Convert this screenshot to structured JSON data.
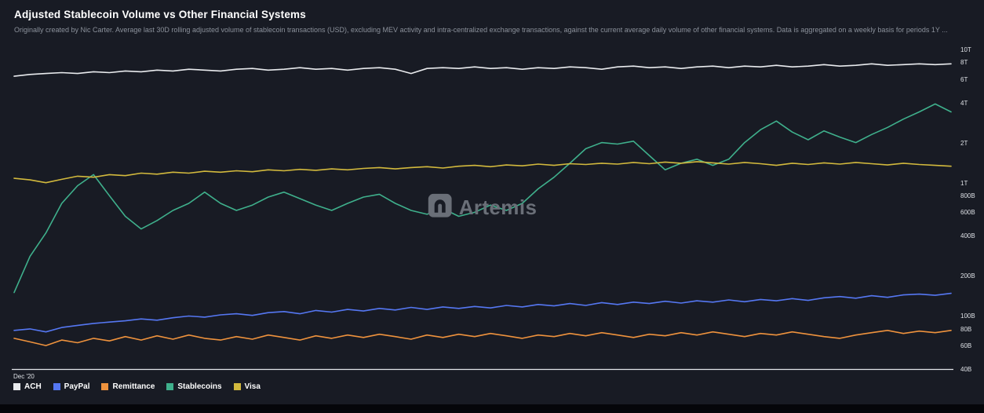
{
  "watermark": {
    "text": "Artemis"
  },
  "chart_data": {
    "type": "line",
    "title": "Adjusted Stablecoin Volume vs Other Financial Systems",
    "subtitle": "Originally created by Nic Carter. Average last 30D rolling adjusted volume of stablecoin transactions (USD), excluding MEV activity and intra-centralized exchange transactions, against the current average daily volume of other financial systems. Data is aggregated on a weekly basis for periods 1Y ...",
    "x_first_label": "Dec '20",
    "y_scale": "log",
    "y_unit": "billions USD",
    "ylim": [
      40,
      10000
    ],
    "grid": false,
    "legend_position": "bottom",
    "y_ticks": [
      {
        "label": "10T",
        "value": 10000
      },
      {
        "label": "8T",
        "value": 8000
      },
      {
        "label": "6T",
        "value": 6000
      },
      {
        "label": "4T",
        "value": 4000
      },
      {
        "label": "2T",
        "value": 2000
      },
      {
        "label": "1T",
        "value": 1000
      },
      {
        "label": "800B",
        "value": 800
      },
      {
        "label": "600B",
        "value": 600
      },
      {
        "label": "400B",
        "value": 400
      },
      {
        "label": "200B",
        "value": 200
      },
      {
        "label": "100B",
        "value": 100
      },
      {
        "label": "80B",
        "value": 80
      },
      {
        "label": "60B",
        "value": 60
      },
      {
        "label": "40B",
        "value": 40
      }
    ],
    "series": [
      {
        "name": "ACH",
        "color": "#e9ebee",
        "values": [
          6300,
          6500,
          6600,
          6700,
          6600,
          6800,
          6700,
          6900,
          6800,
          7000,
          6900,
          7100,
          7000,
          6900,
          7100,
          7200,
          7000,
          7100,
          7300,
          7100,
          7200,
          7000,
          7200,
          7300,
          7100,
          6600,
          7200,
          7300,
          7200,
          7400,
          7200,
          7300,
          7100,
          7300,
          7200,
          7400,
          7300,
          7100,
          7400,
          7500,
          7300,
          7400,
          7200,
          7400,
          7500,
          7300,
          7500,
          7400,
          7600,
          7400,
          7500,
          7700,
          7500,
          7600,
          7800,
          7600,
          7700,
          7800,
          7700,
          7800
        ]
      },
      {
        "name": "PayPal",
        "color": "#5577f2",
        "values": [
          78,
          80,
          76,
          82,
          85,
          88,
          90,
          92,
          95,
          93,
          97,
          100,
          98,
          102,
          104,
          101,
          106,
          108,
          104,
          110,
          107,
          112,
          109,
          114,
          111,
          116,
          112,
          117,
          114,
          118,
          115,
          120,
          117,
          122,
          119,
          124,
          120,
          126,
          122,
          127,
          124,
          129,
          125,
          130,
          127,
          132,
          128,
          133,
          130,
          135,
          131,
          137,
          140,
          136,
          142,
          138,
          144,
          146,
          143,
          148
        ]
      },
      {
        "name": "Remittance",
        "color": "#ee923d",
        "values": [
          68,
          64,
          60,
          66,
          63,
          68,
          65,
          70,
          66,
          71,
          67,
          72,
          68,
          66,
          70,
          67,
          72,
          69,
          66,
          71,
          68,
          72,
          69,
          73,
          70,
          67,
          72,
          69,
          73,
          70,
          74,
          71,
          68,
          72,
          70,
          74,
          71,
          75,
          72,
          69,
          73,
          71,
          75,
          72,
          76,
          73,
          70,
          74,
          72,
          76,
          73,
          70,
          68,
          72,
          75,
          78,
          74,
          77,
          75,
          78
        ]
      },
      {
        "name": "Stablecoins",
        "color": "#3fb08c",
        "values": [
          150,
          280,
          420,
          700,
          950,
          1150,
          800,
          560,
          450,
          520,
          620,
          700,
          850,
          700,
          620,
          680,
          780,
          850,
          760,
          680,
          620,
          700,
          780,
          820,
          700,
          620,
          580,
          640,
          560,
          600,
          680,
          620,
          700,
          900,
          1100,
          1400,
          1800,
          2000,
          1950,
          2050,
          1600,
          1250,
          1400,
          1500,
          1350,
          1500,
          2000,
          2500,
          2900,
          2400,
          2100,
          2450,
          2200,
          2000,
          2300,
          2600,
          3000,
          3400,
          3900,
          3400
        ]
      },
      {
        "name": "Visa",
        "color": "#d2b93d",
        "values": [
          1080,
          1050,
          1000,
          1060,
          1120,
          1100,
          1150,
          1130,
          1180,
          1160,
          1200,
          1180,
          1220,
          1200,
          1230,
          1210,
          1250,
          1230,
          1260,
          1240,
          1270,
          1250,
          1280,
          1300,
          1270,
          1300,
          1320,
          1290,
          1330,
          1350,
          1320,
          1360,
          1340,
          1380,
          1350,
          1390,
          1370,
          1400,
          1380,
          1420,
          1390,
          1430,
          1400,
          1440,
          1410,
          1380,
          1420,
          1390,
          1350,
          1400,
          1370,
          1410,
          1380,
          1420,
          1390,
          1360,
          1400,
          1370,
          1350,
          1330
        ]
      }
    ]
  }
}
